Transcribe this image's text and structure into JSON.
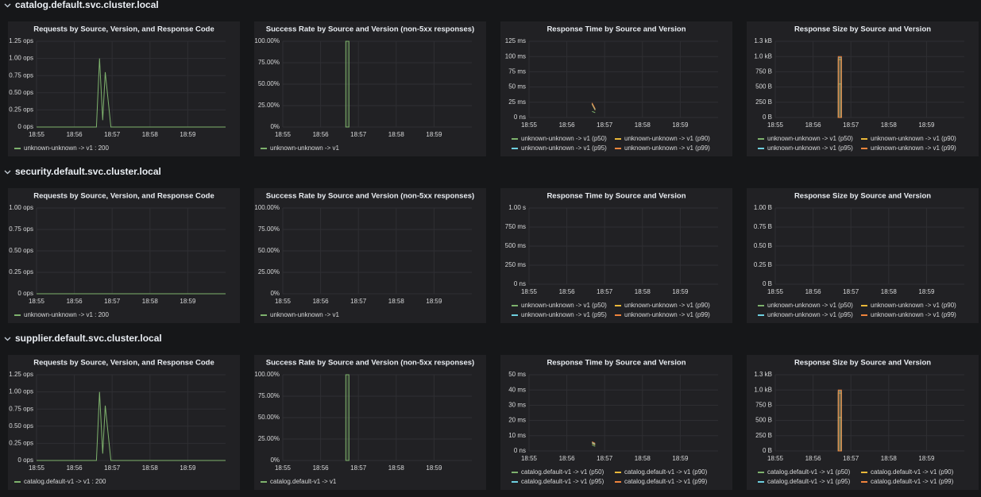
{
  "sections": [
    "catalog.default.svc.cluster.local",
    "security.default.svc.cluster.local",
    "supplier.default.svc.cluster.local"
  ],
  "chart_data": [
    {
      "type": "line",
      "title": "Requests by Source, Version, and Response Code",
      "x": [
        "18:55:00",
        "18:56:35",
        "18:56:40",
        "18:56:45",
        "18:56:49",
        "18:56:58",
        "19:00:00"
      ],
      "series": [
        {
          "name": "unknown-unknown -> v1 : 200",
          "color": "#7eb26d",
          "values": [
            0,
            0,
            1,
            0.1,
            0.8,
            0,
            0
          ]
        }
      ],
      "xlim": [
        "18:55:00",
        "19:00:00"
      ],
      "xticks": [
        "18:55",
        "18:56",
        "18:57",
        "18:58",
        "18:59"
      ],
      "ylim": [
        0,
        1.25
      ],
      "yticks": [
        {
          "value": 0,
          "label": "0 ops"
        },
        {
          "value": 0.25,
          "label": "0.25 ops"
        },
        {
          "value": 0.5,
          "label": "0.50 ops"
        },
        {
          "value": 0.75,
          "label": "0.75 ops"
        },
        {
          "value": 1,
          "label": "1.00 ops"
        },
        {
          "value": 1.25,
          "label": "1.25 ops"
        }
      ]
    },
    {
      "type": "area",
      "title": "Success Rate by Source and Version (non-5xx responses)",
      "x": [
        "18:56:40",
        "18:56:45"
      ],
      "series": [
        {
          "name": "unknown-unknown -> v1",
          "color": "#7eb26d",
          "values": [
            100,
            100
          ]
        }
      ],
      "xlim": [
        "18:55:00",
        "19:00:00"
      ],
      "xticks": [
        "18:55",
        "18:56",
        "18:57",
        "18:58",
        "18:59"
      ],
      "ylim": [
        0,
        100
      ],
      "yticks": [
        {
          "value": 0,
          "label": "0%"
        },
        {
          "value": 25,
          "label": "25.00%"
        },
        {
          "value": 50,
          "label": "50.00%"
        },
        {
          "value": 75,
          "label": "75.00%"
        },
        {
          "value": 100,
          "label": "100.00%"
        }
      ]
    },
    {
      "type": "line",
      "title": "Response Time by Source and Version",
      "x": [
        "18:56:40",
        "18:56:45"
      ],
      "series": [
        {
          "name": "unknown-unknown -> v1 (p50)",
          "color": "#7eb26d",
          "values": [
            10,
            8
          ]
        },
        {
          "name": "unknown-unknown -> v1 (p90)",
          "color": "#eab839",
          "values": [
            22,
            12
          ]
        },
        {
          "name": "unknown-unknown -> v1 (p95)",
          "color": "#6ed0e0",
          "values": [
            23,
            13
          ]
        },
        {
          "name": "unknown-unknown -> v1 (p99)",
          "color": "#ef843c",
          "values": [
            24,
            14
          ]
        }
      ],
      "xlim": [
        "18:55:00",
        "19:00:00"
      ],
      "xticks": [
        "18:55",
        "18:56",
        "18:57",
        "18:58",
        "18:59"
      ],
      "ylim": [
        0,
        125
      ],
      "yticks": [
        {
          "value": 0,
          "label": "0 ns"
        },
        {
          "value": 25,
          "label": "25 ms"
        },
        {
          "value": 50,
          "label": "50 ms"
        },
        {
          "value": 75,
          "label": "75 ms"
        },
        {
          "value": 100,
          "label": "100 ms"
        },
        {
          "value": 125,
          "label": "125 ms"
        }
      ]
    },
    {
      "type": "area",
      "title": "Response Size by Source and Version",
      "x": [
        "18:56:40",
        "18:56:45"
      ],
      "series": [
        {
          "name": "unknown-unknown -> v1 (p50)",
          "color": "#7eb26d",
          "values": [
            550,
            550
          ]
        },
        {
          "name": "unknown-unknown -> v1 (p90)",
          "color": "#eab839",
          "values": [
            950,
            950
          ]
        },
        {
          "name": "unknown-unknown -> v1 (p95)",
          "color": "#6ed0e0",
          "values": [
            980,
            980
          ]
        },
        {
          "name": "unknown-unknown -> v1 (p99)",
          "color": "#ef843c",
          "values": [
            1000,
            1000
          ]
        }
      ],
      "xlim": [
        "18:55:00",
        "19:00:00"
      ],
      "xticks": [
        "18:55",
        "18:56",
        "18:57",
        "18:58",
        "18:59"
      ],
      "ylim": [
        0,
        1250
      ],
      "yticks": [
        {
          "value": 0,
          "label": "0 B"
        },
        {
          "value": 250,
          "label": "250 B"
        },
        {
          "value": 500,
          "label": "500 B"
        },
        {
          "value": 750,
          "label": "750 B"
        },
        {
          "value": 1000,
          "label": "1.0 kB"
        },
        {
          "value": 1250,
          "label": "1.3 kB"
        }
      ]
    },
    {
      "type": "line",
      "title": "Requests by Source, Version, and Response Code",
      "x": [
        "18:55:00",
        "19:00:00"
      ],
      "series": [
        {
          "name": "unknown-unknown -> v1 : 200",
          "color": "#7eb26d",
          "values": [
            0,
            0
          ]
        }
      ],
      "xlim": [
        "18:55:00",
        "19:00:00"
      ],
      "xticks": [
        "18:55",
        "18:56",
        "18:57",
        "18:58",
        "18:59"
      ],
      "ylim": [
        0,
        1
      ],
      "yticks": [
        {
          "value": 0,
          "label": "0 ops"
        },
        {
          "value": 0.25,
          "label": "0.25 ops"
        },
        {
          "value": 0.5,
          "label": "0.50 ops"
        },
        {
          "value": 0.75,
          "label": "0.75 ops"
        },
        {
          "value": 1,
          "label": "1.00 ops"
        }
      ]
    },
    {
      "type": "area",
      "title": "Success Rate by Source and Version (non-5xx responses)",
      "x": [],
      "series": [
        {
          "name": "unknown-unknown -> v1",
          "color": "#7eb26d",
          "values": []
        }
      ],
      "xlim": [
        "18:55:00",
        "19:00:00"
      ],
      "xticks": [
        "18:55",
        "18:56",
        "18:57",
        "18:58",
        "18:59"
      ],
      "ylim": [
        0,
        100
      ],
      "yticks": [
        {
          "value": 0,
          "label": "0%"
        },
        {
          "value": 25,
          "label": "25.00%"
        },
        {
          "value": 50,
          "label": "50.00%"
        },
        {
          "value": 75,
          "label": "75.00%"
        },
        {
          "value": 100,
          "label": "100.00%"
        }
      ]
    },
    {
      "type": "line",
      "title": "Response Time by Source and Version",
      "x": [],
      "series": [
        {
          "name": "unknown-unknown -> v1 (p50)",
          "color": "#7eb26d",
          "values": []
        },
        {
          "name": "unknown-unknown -> v1 (p90)",
          "color": "#eab839",
          "values": []
        },
        {
          "name": "unknown-unknown -> v1 (p95)",
          "color": "#6ed0e0",
          "values": []
        },
        {
          "name": "unknown-unknown -> v1 (p99)",
          "color": "#ef843c",
          "values": []
        }
      ],
      "xlim": [
        "18:55:00",
        "19:00:00"
      ],
      "xticks": [
        "18:55",
        "18:56",
        "18:57",
        "18:58",
        "18:59"
      ],
      "ylim": [
        0,
        1000
      ],
      "yticks": [
        {
          "value": 0,
          "label": "0 ns"
        },
        {
          "value": 250,
          "label": "250 ms"
        },
        {
          "value": 500,
          "label": "500 ms"
        },
        {
          "value": 750,
          "label": "750 ms"
        },
        {
          "value": 1000,
          "label": "1.00 s"
        }
      ]
    },
    {
      "type": "area",
      "title": "Response Size by Source and Version",
      "x": [],
      "series": [
        {
          "name": "unknown-unknown -> v1 (p50)",
          "color": "#7eb26d",
          "values": []
        },
        {
          "name": "unknown-unknown -> v1 (p90)",
          "color": "#eab839",
          "values": []
        },
        {
          "name": "unknown-unknown -> v1 (p95)",
          "color": "#6ed0e0",
          "values": []
        },
        {
          "name": "unknown-unknown -> v1 (p99)",
          "color": "#ef843c",
          "values": []
        }
      ],
      "xlim": [
        "18:55:00",
        "19:00:00"
      ],
      "xticks": [
        "18:55",
        "18:56",
        "18:57",
        "18:58",
        "18:59"
      ],
      "ylim": [
        0,
        1
      ],
      "yticks": [
        {
          "value": 0,
          "label": "0 B"
        },
        {
          "value": 0.25,
          "label": "0.25 B"
        },
        {
          "value": 0.5,
          "label": "0.50 B"
        },
        {
          "value": 0.75,
          "label": "0.75 B"
        },
        {
          "value": 1,
          "label": "1.00 B"
        }
      ]
    },
    {
      "type": "line",
      "title": "Requests by Source, Version, and Response Code",
      "x": [
        "18:55:00",
        "18:56:35",
        "18:56:40",
        "18:56:45",
        "18:56:49",
        "18:56:58",
        "19:00:00"
      ],
      "series": [
        {
          "name": "catalog.default-v1 -> v1 : 200",
          "color": "#7eb26d",
          "values": [
            0,
            0,
            1,
            0.1,
            0.8,
            0,
            0
          ]
        }
      ],
      "xlim": [
        "18:55:00",
        "19:00:00"
      ],
      "xticks": [
        "18:55",
        "18:56",
        "18:57",
        "18:58",
        "18:59"
      ],
      "ylim": [
        0,
        1.25
      ],
      "yticks": [
        {
          "value": 0,
          "label": "0 ops"
        },
        {
          "value": 0.25,
          "label": "0.25 ops"
        },
        {
          "value": 0.5,
          "label": "0.50 ops"
        },
        {
          "value": 0.75,
          "label": "0.75 ops"
        },
        {
          "value": 1,
          "label": "1.00 ops"
        },
        {
          "value": 1.25,
          "label": "1.25 ops"
        }
      ]
    },
    {
      "type": "area",
      "title": "Success Rate by Source and Version (non-5xx responses)",
      "x": [
        "18:56:40",
        "18:56:45"
      ],
      "series": [
        {
          "name": "catalog.default-v1 -> v1",
          "color": "#7eb26d",
          "values": [
            100,
            100
          ]
        }
      ],
      "xlim": [
        "18:55:00",
        "19:00:00"
      ],
      "xticks": [
        "18:55",
        "18:56",
        "18:57",
        "18:58",
        "18:59"
      ],
      "ylim": [
        0,
        100
      ],
      "yticks": [
        {
          "value": 0,
          "label": "0%"
        },
        {
          "value": 25,
          "label": "25.00%"
        },
        {
          "value": 50,
          "label": "50.00%"
        },
        {
          "value": 75,
          "label": "75.00%"
        },
        {
          "value": 100,
          "label": "100.00%"
        }
      ]
    },
    {
      "type": "line",
      "title": "Response Time by Source and Version",
      "x": [
        "18:56:40",
        "18:56:45"
      ],
      "series": [
        {
          "name": "catalog.default-v1 -> v1 (p50)",
          "color": "#7eb26d",
          "values": [
            4,
            3
          ]
        },
        {
          "name": "catalog.default-v1 -> v1 (p90)",
          "color": "#eab839",
          "values": [
            5,
            4
          ]
        },
        {
          "name": "catalog.default-v1 -> v1 (p95)",
          "color": "#6ed0e0",
          "values": [
            5.5,
            4.5
          ]
        },
        {
          "name": "catalog.default-v1 -> v1 (p99)",
          "color": "#ef843c",
          "values": [
            6,
            5
          ]
        }
      ],
      "xlim": [
        "18:55:00",
        "19:00:00"
      ],
      "xticks": [
        "18:55",
        "18:56",
        "18:57",
        "18:58",
        "18:59"
      ],
      "ylim": [
        0,
        50
      ],
      "yticks": [
        {
          "value": 0,
          "label": "0 ns"
        },
        {
          "value": 10,
          "label": "10 ms"
        },
        {
          "value": 20,
          "label": "20 ms"
        },
        {
          "value": 30,
          "label": "30 ms"
        },
        {
          "value": 40,
          "label": "40 ms"
        },
        {
          "value": 50,
          "label": "50 ms"
        }
      ]
    },
    {
      "type": "area",
      "title": "Response Size by Source and Version",
      "x": [
        "18:56:40",
        "18:56:45"
      ],
      "series": [
        {
          "name": "catalog.default-v1 -> v1 (p50)",
          "color": "#7eb26d",
          "values": [
            550,
            550
          ]
        },
        {
          "name": "catalog.default-v1 -> v1 (p90)",
          "color": "#eab839",
          "values": [
            950,
            950
          ]
        },
        {
          "name": "catalog.default-v1 -> v1 (p95)",
          "color": "#6ed0e0",
          "values": [
            980,
            980
          ]
        },
        {
          "name": "catalog.default-v1 -> v1 (p99)",
          "color": "#ef843c",
          "values": [
            1000,
            1000
          ]
        }
      ],
      "xlim": [
        "18:55:00",
        "19:00:00"
      ],
      "xticks": [
        "18:55",
        "18:56",
        "18:57",
        "18:58",
        "18:59"
      ],
      "ylim": [
        0,
        1250
      ],
      "yticks": [
        {
          "value": 0,
          "label": "0 B"
        },
        {
          "value": 250,
          "label": "250 B"
        },
        {
          "value": 500,
          "label": "500 B"
        },
        {
          "value": 750,
          "label": "750 B"
        },
        {
          "value": 1000,
          "label": "1.0 kB"
        },
        {
          "value": 1250,
          "label": "1.3 kB"
        }
      ]
    }
  ]
}
